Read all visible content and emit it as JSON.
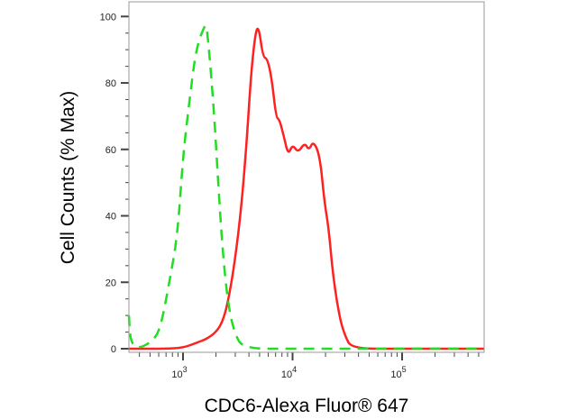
{
  "chart_data": {
    "type": "line",
    "xlabel": "CDC6-Alexa Fluor® 647",
    "ylabel": "Cell Counts (% Max)",
    "x_scale": "log",
    "xlim": [
      316,
      562000
    ],
    "ylim": [
      0,
      100
    ],
    "grid": false,
    "yticks": [
      0,
      20,
      40,
      60,
      80,
      100
    ],
    "ytick_labels": [
      "0",
      "20",
      "40",
      "60",
      "80",
      "100"
    ],
    "xticks": [
      1000,
      10000,
      100000
    ],
    "xtick_labels": [
      {
        "base": "10",
        "exp": "3"
      },
      {
        "base": "10",
        "exp": "4"
      },
      {
        "base": "10",
        "exp": "5"
      }
    ],
    "series": [
      {
        "color": "#ff2020",
        "style": "solid",
        "x": [
          316,
          417,
          692,
          1000,
          1288,
          1660,
          2000,
          2291,
          2570,
          2951,
          3388,
          3802,
          4169,
          4571,
          4898,
          5370,
          5888,
          6457,
          7079,
          7586,
          8318,
          9120,
          10000,
          11220,
          12882,
          14125,
          15488,
          17783,
          19498,
          21380,
          23442,
          26915,
          30200,
          34674,
          100000,
          562000
        ],
        "y": [
          0,
          0,
          0,
          0.3,
          1.6,
          3,
          5,
          8,
          13.9,
          25.5,
          41.7,
          61.5,
          82.3,
          95,
          97.2,
          87.8,
          87.3,
          81.3,
          69.6,
          69,
          64,
          58.3,
          61.5,
          59,
          62,
          59.7,
          62.6,
          58,
          44.4,
          36.2,
          21.7,
          9.2,
          3.8,
          0,
          0,
          0
        ]
      },
      {
        "color": "#22dd22",
        "style": "dashed",
        "x": [
          316,
          331,
          389,
          513,
          617,
          741,
          891,
          1000,
          1148,
          1318,
          1585,
          1660,
          1905,
          2089,
          2291,
          2570,
          2951,
          3548,
          10000,
          562000
        ],
        "y": [
          10,
          2,
          0,
          2,
          5.5,
          19,
          34,
          58,
          75,
          90.5,
          97.6,
          96.7,
          73,
          50.7,
          30,
          13.6,
          4.6,
          0,
          0,
          0
        ]
      }
    ]
  }
}
